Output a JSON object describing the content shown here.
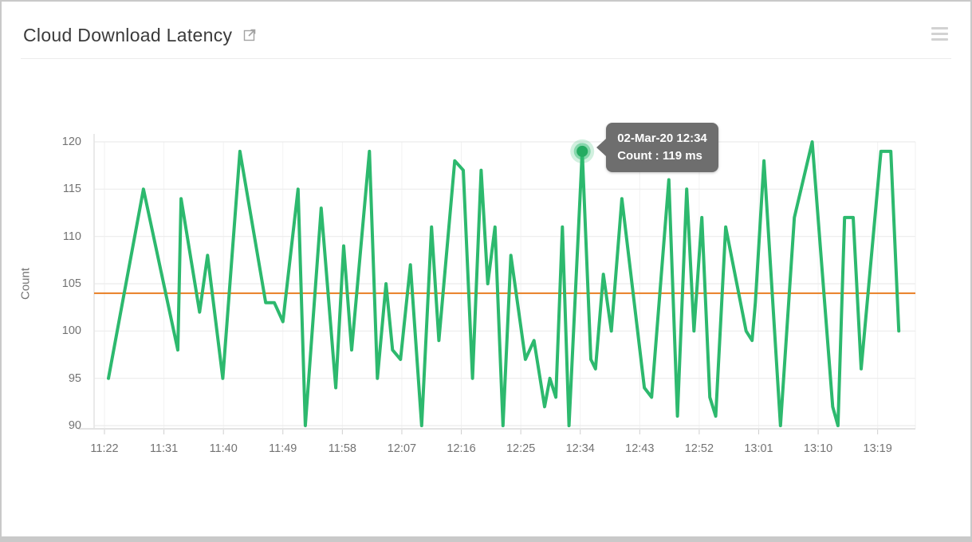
{
  "header": {
    "title": "Cloud Download Latency",
    "open_in_new_icon": "open-in-new-icon",
    "menu_icon": "hamburger-menu-icon"
  },
  "tooltip": {
    "line1": "02-Mar-20 12:34",
    "line2": "Count : 119 ms"
  },
  "colors": {
    "series_green": "#2db96e",
    "threshold_orange": "#e87e23",
    "tooltip_gray": "#6e6e6e",
    "grid_gray": "#ececec",
    "axis_text_gray": "#737373"
  },
  "chart_data": {
    "type": "line",
    "title": "Cloud Download Latency",
    "xlabel": "",
    "ylabel": "Count",
    "ylim": [
      90,
      120
    ],
    "y_ticks": [
      120,
      115,
      110,
      105,
      100,
      95,
      90
    ],
    "x_ticks": [
      "11:22",
      "11:31",
      "11:40",
      "11:49",
      "11:58",
      "12:07",
      "12:16",
      "12:25",
      "12:34",
      "12:43",
      "12:52",
      "13:01",
      "13:10",
      "13:19"
    ],
    "x_tick_interval_min": 9,
    "grid": true,
    "legend_position": "none",
    "threshold": {
      "value": 104,
      "color": "#e87e23"
    },
    "series": [
      {
        "name": "Count (ms)",
        "color": "#2db96e",
        "points": [
          [
            0.6,
            95
          ],
          [
            5.9,
            115
          ],
          [
            11.1,
            98
          ],
          [
            11.6,
            114
          ],
          [
            14.4,
            102
          ],
          [
            15.6,
            108
          ],
          [
            17.9,
            95
          ],
          [
            20.5,
            119
          ],
          [
            24.4,
            103
          ],
          [
            25.7,
            103
          ],
          [
            27.0,
            101
          ],
          [
            29.3,
            115
          ],
          [
            30.4,
            90
          ],
          [
            32.8,
            113
          ],
          [
            35.0,
            94
          ],
          [
            36.2,
            109
          ],
          [
            37.4,
            98
          ],
          [
            40.1,
            119
          ],
          [
            41.3,
            95
          ],
          [
            42.6,
            105
          ],
          [
            43.6,
            98
          ],
          [
            44.8,
            97
          ],
          [
            46.3,
            107
          ],
          [
            48.0,
            90
          ],
          [
            49.5,
            111
          ],
          [
            50.6,
            99
          ],
          [
            53.0,
            118
          ],
          [
            54.3,
            117
          ],
          [
            55.7,
            95
          ],
          [
            57.0,
            117
          ],
          [
            58.0,
            105
          ],
          [
            59.1,
            111
          ],
          [
            60.3,
            90
          ],
          [
            61.5,
            108
          ],
          [
            63.7,
            97
          ],
          [
            65.0,
            99
          ],
          [
            66.6,
            92
          ],
          [
            67.4,
            95
          ],
          [
            68.3,
            93
          ],
          [
            69.3,
            111
          ],
          [
            70.3,
            90
          ],
          [
            72.3,
            119
          ],
          [
            73.6,
            97
          ],
          [
            74.3,
            96
          ],
          [
            75.5,
            106
          ],
          [
            76.7,
            100
          ],
          [
            78.3,
            114
          ],
          [
            80.0,
            104
          ],
          [
            81.7,
            94
          ],
          [
            82.8,
            93
          ],
          [
            85.4,
            116
          ],
          [
            86.7,
            91
          ],
          [
            88.1,
            115
          ],
          [
            89.2,
            100
          ],
          [
            90.4,
            112
          ],
          [
            91.6,
            93
          ],
          [
            92.5,
            91
          ],
          [
            94.0,
            111
          ],
          [
            97.1,
            100
          ],
          [
            98.0,
            99
          ],
          [
            98.5,
            103
          ],
          [
            99.8,
            118
          ],
          [
            102.3,
            90
          ],
          [
            104.4,
            112
          ],
          [
            107.1,
            120
          ],
          [
            110.2,
            92
          ],
          [
            111.0,
            90
          ],
          [
            112.0,
            112
          ],
          [
            113.3,
            112
          ],
          [
            114.5,
            96
          ],
          [
            117.5,
            119
          ],
          [
            119.0,
            119
          ],
          [
            120.2,
            100
          ]
        ]
      }
    ],
    "highlight": {
      "minute": 72.3,
      "value": 119,
      "date_label": "02-Mar-20",
      "time_label": "12:34"
    }
  }
}
